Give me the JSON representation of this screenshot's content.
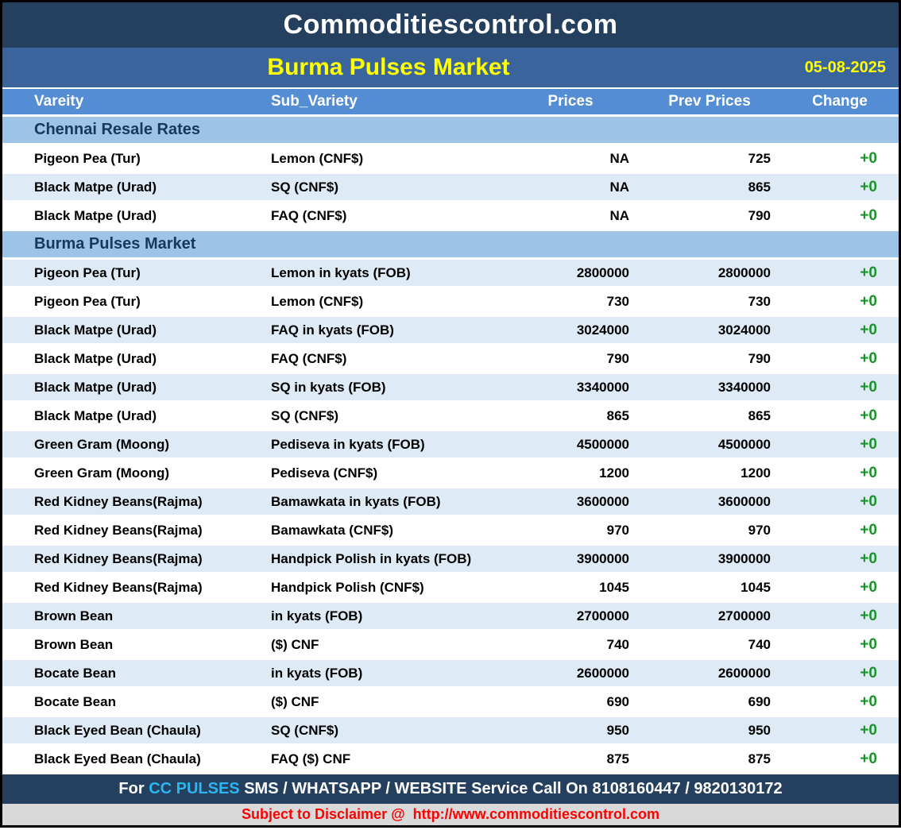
{
  "page": {
    "site_title": "Commoditiescontrol.com",
    "report_title": "Burma Pulses Market",
    "report_date": "05-08-2025"
  },
  "table": {
    "columns": [
      "Vareity",
      "Sub_Variety",
      "Prices",
      "Prev Prices",
      "Change"
    ],
    "sections": [
      {
        "title": "Chennai Resale Rates",
        "zebra_start": "white",
        "rows": [
          [
            "Pigeon Pea (Tur)",
            "Lemon (CNF$)",
            "NA",
            "725",
            "+0"
          ],
          [
            "Black Matpe (Urad)",
            "SQ (CNF$)",
            "NA",
            "865",
            "+0"
          ],
          [
            "Black Matpe (Urad)",
            "FAQ (CNF$)",
            "NA",
            "790",
            "+0"
          ]
        ]
      },
      {
        "title": "Burma Pulses Market",
        "zebra_start": "blue",
        "rows": [
          [
            "Pigeon Pea (Tur)",
            "Lemon in kyats (FOB)",
            "2800000",
            "2800000",
            "+0"
          ],
          [
            "Pigeon Pea (Tur)",
            "Lemon (CNF$)",
            "730",
            "730",
            "+0"
          ],
          [
            "Black Matpe (Urad)",
            "FAQ in kyats (FOB)",
            "3024000",
            "3024000",
            "+0"
          ],
          [
            "Black Matpe (Urad)",
            "FAQ (CNF$)",
            "790",
            "790",
            "+0"
          ],
          [
            "Black Matpe (Urad)",
            "SQ in kyats (FOB)",
            "3340000",
            "3340000",
            "+0"
          ],
          [
            "Black Matpe (Urad)",
            "SQ (CNF$)",
            "865",
            "865",
            "+0"
          ],
          [
            "Green Gram (Moong)",
            "Pediseva in kyats (FOB)",
            "4500000",
            "4500000",
            "+0"
          ],
          [
            "Green Gram (Moong)",
            "Pediseva (CNF$)",
            "1200",
            "1200",
            "+0"
          ],
          [
            "Red Kidney Beans(Rajma)",
            "Bamawkata in kyats (FOB)",
            "3600000",
            "3600000",
            "+0"
          ],
          [
            "Red Kidney Beans(Rajma)",
            "Bamawkata (CNF$)",
            "970",
            "970",
            "+0"
          ],
          [
            "Red Kidney Beans(Rajma)",
            "Handpick Polish in kyats (FOB)",
            "3900000",
            "3900000",
            "+0"
          ],
          [
            "Red Kidney Beans(Rajma)",
            "Handpick Polish (CNF$)",
            "1045",
            "1045",
            "+0"
          ],
          [
            "Brown Bean",
            "in kyats (FOB)",
            "2700000",
            "2700000",
            "+0"
          ],
          [
            "Brown Bean",
            "($) CNF",
            "740",
            "740",
            "+0"
          ],
          [
            "Bocate Bean",
            "in kyats (FOB)",
            "2600000",
            "2600000",
            "+0"
          ],
          [
            "Bocate Bean",
            "($) CNF",
            "690",
            "690",
            "+0"
          ],
          [
            "Black Eyed Bean (Chaula)",
            "SQ (CNF$)",
            "950",
            "950",
            "+0"
          ],
          [
            "Black Eyed Bean (Chaula)",
            "FAQ ($) CNF",
            "875",
            "875",
            "+0"
          ]
        ]
      }
    ]
  },
  "footer": {
    "service_prefix": "For ",
    "service_brand": "CC PULSES",
    "service_rest": " SMS / WHATSAPP / WEBSITE Service Call On 8108160447 / 9820130172",
    "disclaimer_prefix": "Subject to Disclaimer @  ",
    "disclaimer_url": "http://www.commoditiescontrol.com"
  },
  "colors": {
    "header_navy": "#24405E",
    "subheader_blue": "#3A659C",
    "column_header_blue": "#548DD4",
    "section_row_blue": "#9DC3E6",
    "zebra_row_blue": "#DEEAF6",
    "change_green": "#189428",
    "brand_cyan": "#29B6F2",
    "title_yellow": "#FFFF00",
    "disclaimer_red": "#FF0000",
    "disclaimer_gray": "#D9D9D9"
  }
}
